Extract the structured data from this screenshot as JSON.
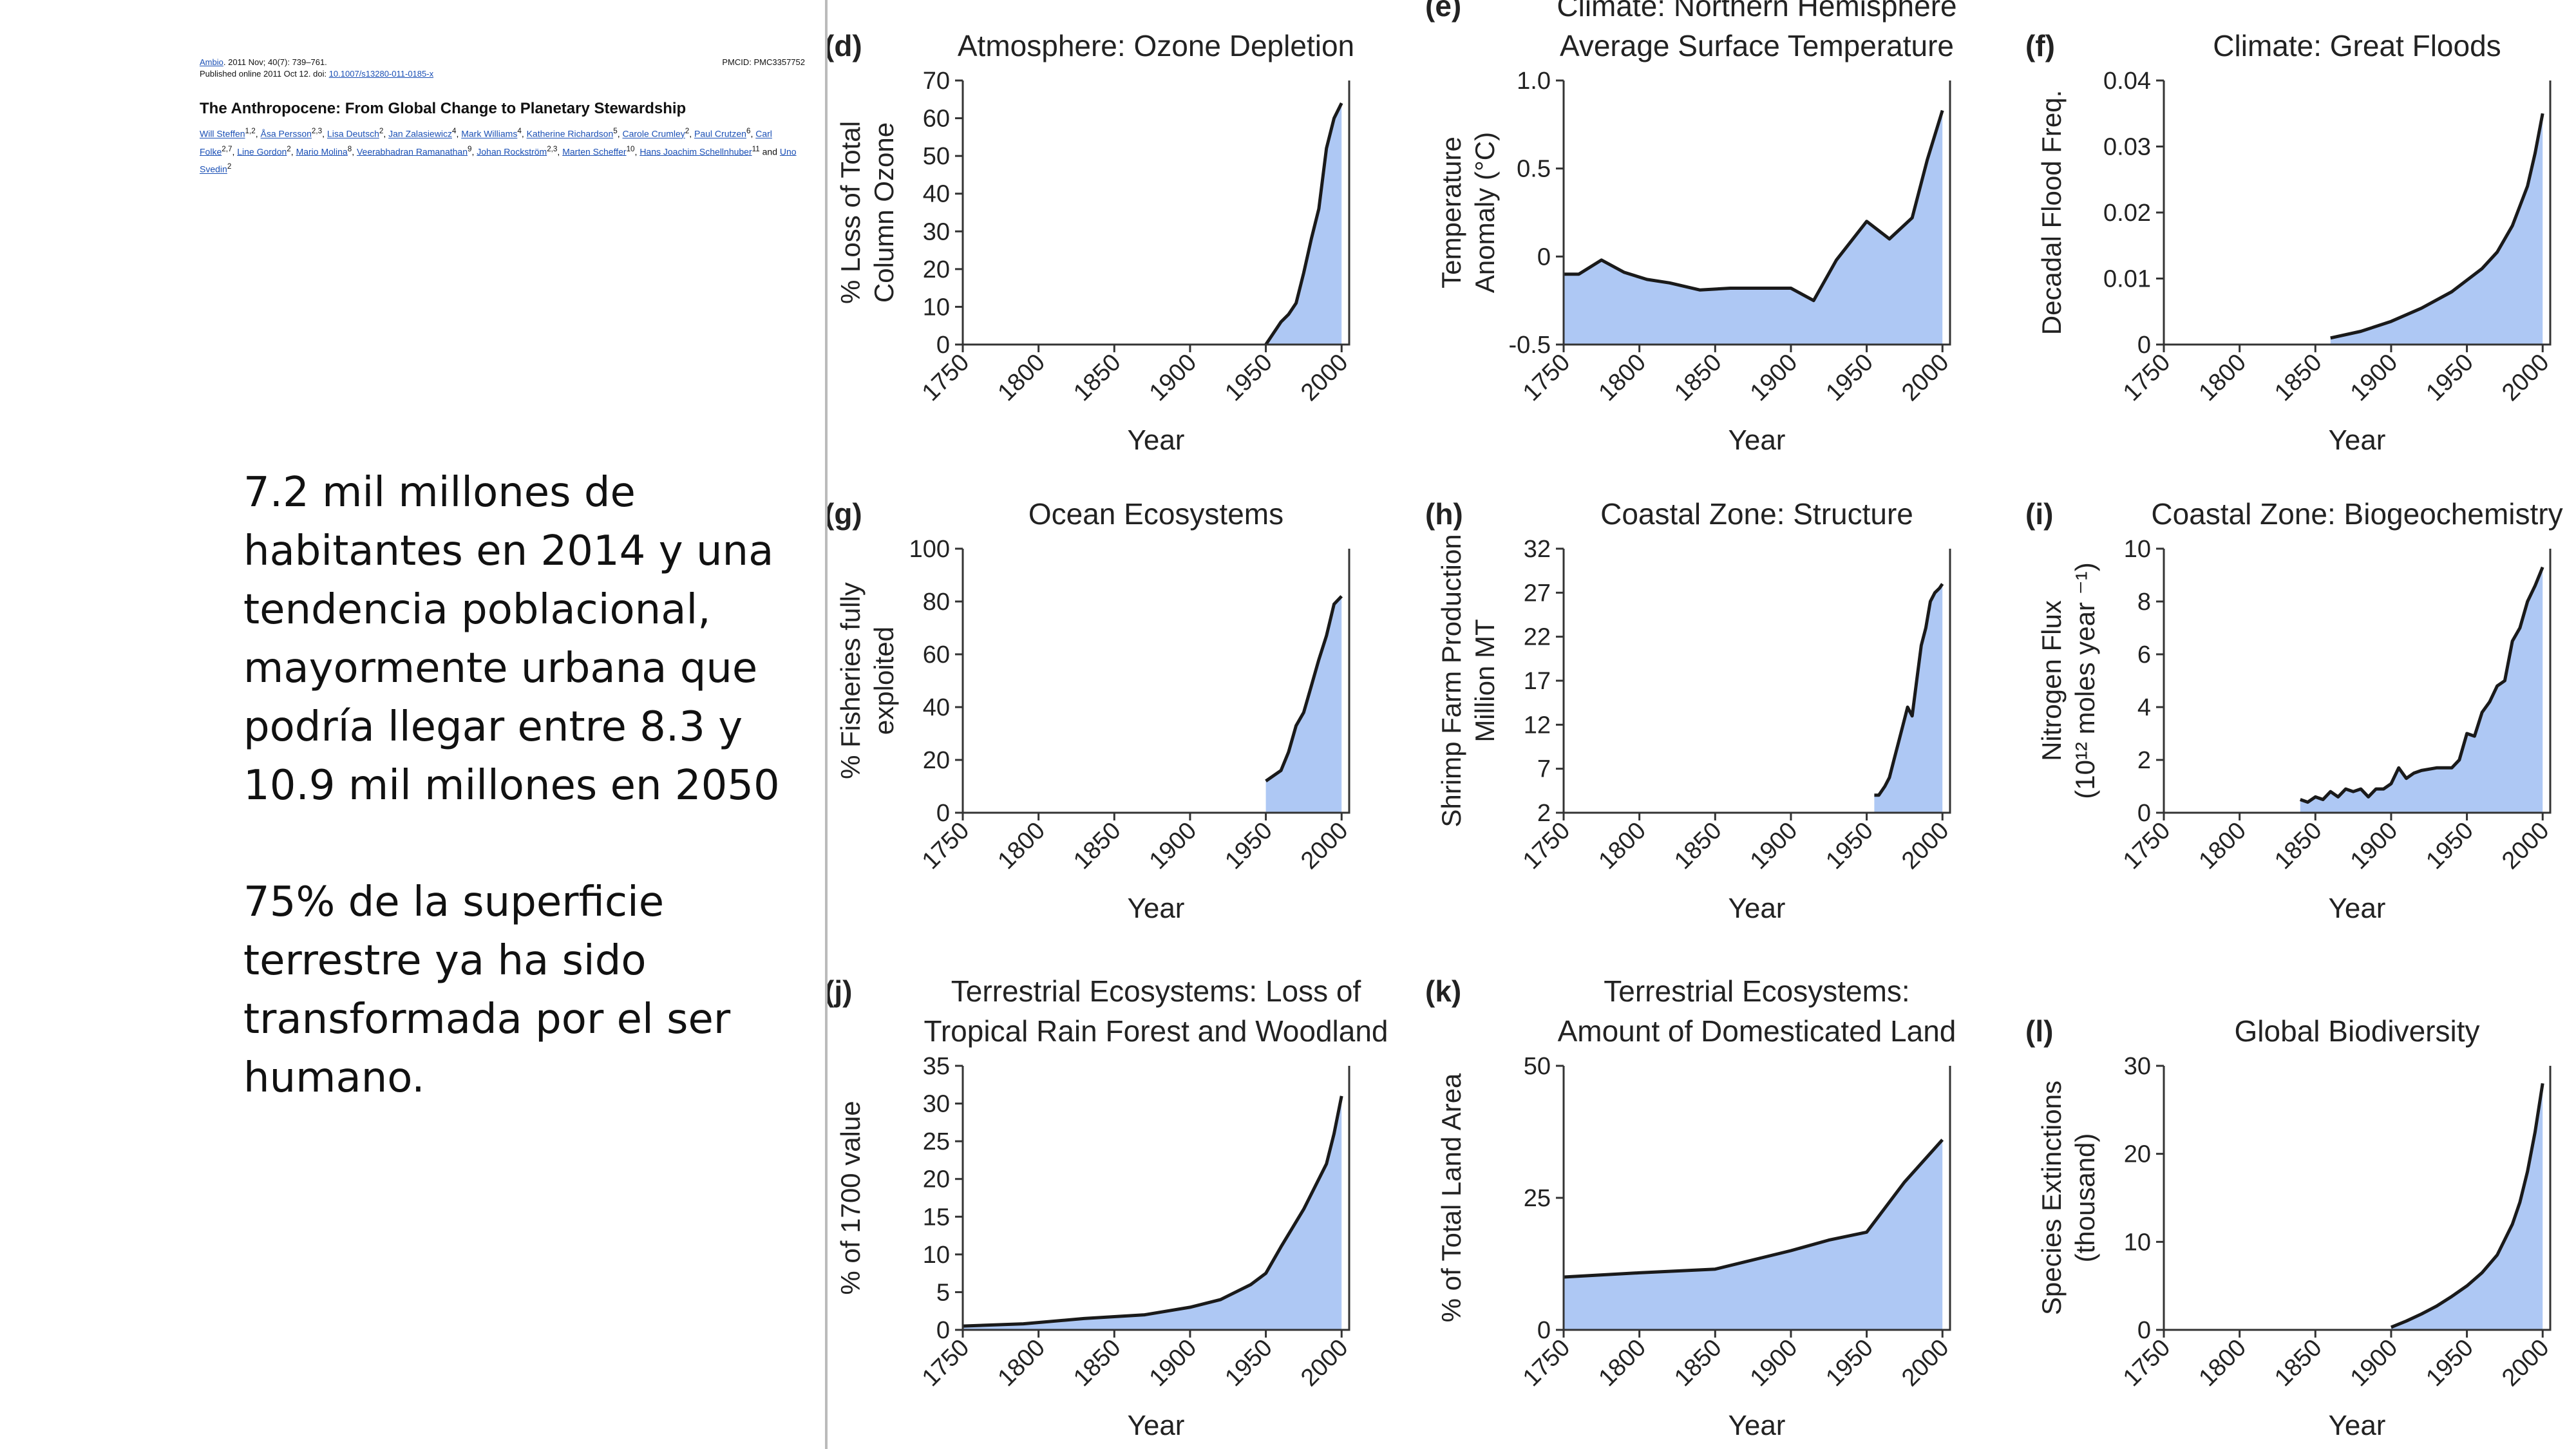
{
  "citation": {
    "journal_link": "Ambio",
    "journal_rest": ". 2011 Nov; 40(7): 739–761.",
    "pmcid": "PMCID: PMC3357752",
    "published": "Published online 2011 Oct 12. doi: ",
    "doi": "10.1007/s13280-011-0185-x",
    "title": "The Anthropocene: From Global Change to Planetary Stewardship",
    "authors": [
      {
        "name": "Will Steffen",
        "sup": "1,2"
      },
      {
        "name": "Åsa Persson",
        "sup": "2,3"
      },
      {
        "name": "Lisa Deutsch",
        "sup": "2"
      },
      {
        "name": "Jan Zalasiewicz",
        "sup": "4"
      },
      {
        "name": "Mark Williams",
        "sup": "4"
      },
      {
        "name": "Katherine Richardson",
        "sup": "5"
      },
      {
        "name": "Carole Crumley",
        "sup": "2"
      },
      {
        "name": "Paul Crutzen",
        "sup": "6"
      },
      {
        "name": "Carl Folke",
        "sup": "2,7"
      },
      {
        "name": "Line Gordon",
        "sup": "2"
      },
      {
        "name": "Mario Molina",
        "sup": "8"
      },
      {
        "name": "Veerabhadran Ramanathan",
        "sup": "9"
      },
      {
        "name": "Johan Rockström",
        "sup": "2,3"
      },
      {
        "name": "Marten Scheffer",
        "sup": "10"
      },
      {
        "name": "Hans Joachim Schellnhuber",
        "sup": "11"
      },
      {
        "name": "Uno Svedin",
        "sup": "2"
      }
    ],
    "and_word": "and"
  },
  "notes": {
    "paragraph1": "7.2 mil millones de habitantes en 2014 y una tendencia poblacional, mayormente urbana que podría llegar entre 8.3 y 10.9 mil millones en 2050",
    "paragraph2": "75% de la superficie terrestre ya ha sido transformada por el ser humano."
  },
  "colors": {
    "fill": "#aec8f4",
    "line": "#1a1a1a",
    "axis": "#333333"
  },
  "chart_data": [
    {
      "type": "area",
      "letter": "(d)",
      "title": [
        "Atmosphere: Ozone Depletion"
      ],
      "ylabel": [
        "% Loss of Total",
        "Column Ozone"
      ],
      "xlabel": "Year",
      "xlim": [
        1750,
        2005
      ],
      "ylim": [
        0,
        70
      ],
      "xticks": [
        "1750",
        "1800",
        "1850",
        "1900",
        "1950",
        "2000"
      ],
      "yticks": [
        "0",
        "10",
        "20",
        "30",
        "40",
        "50",
        "60",
        "70"
      ],
      "x": [
        1950,
        1955,
        1960,
        1965,
        1970,
        1975,
        1980,
        1985,
        1990,
        1995,
        2000
      ],
      "y": [
        0,
        3,
        6,
        8,
        11,
        19,
        28,
        36,
        52,
        60,
        64
      ]
    },
    {
      "type": "area",
      "letter": "(e)",
      "title": [
        "Climate: Northern Hemisphere",
        "Average Surface Temperature"
      ],
      "ylabel": [
        "Temperature",
        "Anomaly (°C)"
      ],
      "xlabel": "Year",
      "xlim": [
        1750,
        2005
      ],
      "ylim": [
        -0.5,
        1.0
      ],
      "xticks": [
        "1750",
        "1800",
        "1850",
        "1900",
        "1950",
        "2000"
      ],
      "yticks": [
        "-0.5",
        "0",
        "0.5",
        "1.0"
      ],
      "x": [
        1750,
        1760,
        1775,
        1790,
        1805,
        1820,
        1840,
        1860,
        1880,
        1900,
        1915,
        1930,
        1950,
        1965,
        1980,
        1990,
        2000
      ],
      "y": [
        -0.1,
        -0.1,
        -0.02,
        -0.09,
        -0.13,
        -0.15,
        -0.19,
        -0.18,
        -0.18,
        -0.18,
        -0.25,
        -0.02,
        0.2,
        0.1,
        0.22,
        0.55,
        0.83
      ]
    },
    {
      "type": "area",
      "letter": "(f)",
      "title": [
        "Climate: Great Floods"
      ],
      "ylabel": [
        "Decadal Flood Freq."
      ],
      "xlabel": "Year",
      "xlim": [
        1750,
        2005
      ],
      "ylim": [
        0,
        0.04
      ],
      "xticks": [
        "1750",
        "1800",
        "1850",
        "1900",
        "1950",
        "2000"
      ],
      "yticks": [
        "0",
        "0.01",
        "0.02",
        "0.03",
        "0.04"
      ],
      "x": [
        1860,
        1880,
        1900,
        1920,
        1940,
        1960,
        1970,
        1980,
        1990,
        1995,
        2000
      ],
      "y": [
        0.001,
        0.002,
        0.0035,
        0.0055,
        0.008,
        0.0115,
        0.014,
        0.018,
        0.024,
        0.029,
        0.035
      ]
    },
    {
      "type": "area",
      "letter": "(g)",
      "title": [
        "Ocean Ecosystems"
      ],
      "ylabel": [
        "% Fisheries fully",
        "exploited"
      ],
      "xlabel": "Year",
      "xlim": [
        1750,
        2005
      ],
      "ylim": [
        0,
        100
      ],
      "xticks": [
        "1750",
        "1800",
        "1850",
        "1900",
        "1950",
        "2000"
      ],
      "yticks": [
        "0",
        "20",
        "40",
        "60",
        "80",
        "100"
      ],
      "x": [
        1950,
        1955,
        1960,
        1965,
        1970,
        1975,
        1980,
        1985,
        1990,
        1995,
        2000
      ],
      "y": [
        12,
        14,
        16,
        23,
        33,
        38,
        48,
        58,
        67,
        79,
        82
      ]
    },
    {
      "type": "area",
      "letter": "(h)",
      "title": [
        "Coastal Zone: Structure"
      ],
      "ylabel": [
        "Shrimp Farm Production",
        "Million MT"
      ],
      "xlabel": "Year",
      "xlim": [
        1750,
        2005
      ],
      "ylim": [
        2,
        32
      ],
      "xticks": [
        "1750",
        "1800",
        "1850",
        "1900",
        "1950",
        "2000"
      ],
      "yticks": [
        "2",
        "7",
        "12",
        "17",
        "22",
        "27",
        "32"
      ],
      "x": [
        1955,
        1958,
        1962,
        1965,
        1968,
        1971,
        1974,
        1977,
        1980,
        1983,
        1986,
        1989,
        1992,
        1995,
        1998,
        2000
      ],
      "y": [
        4,
        4,
        5,
        6,
        8,
        10,
        12,
        14,
        13,
        17,
        21,
        23,
        26,
        27,
        27.5,
        28
      ]
    },
    {
      "type": "area",
      "letter": "(i)",
      "title": [
        "Coastal Zone: Biogeochemistry"
      ],
      "ylabel": [
        "Nitrogen Flux",
        "(10¹² moles year ⁻¹)"
      ],
      "xlabel": "Year",
      "xlim": [
        1750,
        2005
      ],
      "ylim": [
        0,
        10
      ],
      "xticks": [
        "1750",
        "1800",
        "1850",
        "1900",
        "1950",
        "2000"
      ],
      "yticks": [
        "0",
        "2",
        "4",
        "6",
        "8",
        "10"
      ],
      "x": [
        1840,
        1845,
        1850,
        1855,
        1860,
        1865,
        1870,
        1875,
        1880,
        1885,
        1890,
        1895,
        1900,
        1905,
        1910,
        1915,
        1920,
        1930,
        1940,
        1945,
        1950,
        1955,
        1960,
        1965,
        1970,
        1975,
        1980,
        1985,
        1990,
        1995,
        2000
      ],
      "y": [
        0.5,
        0.4,
        0.6,
        0.5,
        0.8,
        0.6,
        0.9,
        0.8,
        0.9,
        0.6,
        0.9,
        0.9,
        1.1,
        1.7,
        1.3,
        1.5,
        1.6,
        1.7,
        1.7,
        2.0,
        3.0,
        2.9,
        3.8,
        4.2,
        4.8,
        5.0,
        6.5,
        7.0,
        8.0,
        8.6,
        9.3
      ]
    },
    {
      "type": "area",
      "letter": "(j)",
      "title": [
        "Terrestrial Ecosystems: Loss of",
        "Tropical Rain Forest and Woodland"
      ],
      "ylabel": [
        "% of 1700 value"
      ],
      "xlabel": "Year",
      "xlim": [
        1750,
        2005
      ],
      "ylim": [
        0,
        35
      ],
      "xticks": [
        "1750",
        "1800",
        "1850",
        "1900",
        "1950",
        "2000"
      ],
      "yticks": [
        "0",
        "5",
        "10",
        "15",
        "20",
        "25",
        "30",
        "35"
      ],
      "x": [
        1750,
        1790,
        1830,
        1870,
        1900,
        1920,
        1940,
        1950,
        1960,
        1975,
        1990,
        1995,
        2000
      ],
      "y": [
        0.5,
        0.8,
        1.5,
        2,
        3,
        4,
        6,
        7.5,
        11,
        16,
        22,
        26,
        31
      ]
    },
    {
      "type": "area",
      "letter": "(k)",
      "title": [
        "Terrestrial Ecosystems:",
        "Amount of Domesticated Land"
      ],
      "ylabel": [
        "% of Total Land Area"
      ],
      "xlabel": "Year",
      "xlim": [
        1750,
        2005
      ],
      "ylim": [
        0,
        50
      ],
      "xticks": [
        "1750",
        "1800",
        "1850",
        "1900",
        "1950",
        "2000"
      ],
      "yticks": [
        "0",
        "25",
        "50"
      ],
      "x": [
        1750,
        1800,
        1850,
        1900,
        1925,
        1950,
        1975,
        2000
      ],
      "y": [
        10,
        10.8,
        11.5,
        15,
        17,
        18.5,
        28,
        36
      ]
    },
    {
      "type": "area",
      "letter": "(l)",
      "title": [
        "Global Biodiversity"
      ],
      "ylabel": [
        "Species Extinctions",
        "(thousand)"
      ],
      "xlabel": "Year",
      "xlim": [
        1750,
        2005
      ],
      "ylim": [
        0,
        30
      ],
      "xticks": [
        "1750",
        "1800",
        "1850",
        "1900",
        "1950",
        "2000"
      ],
      "yticks": [
        "0",
        "10",
        "20",
        "30"
      ],
      "x": [
        1900,
        1910,
        1920,
        1930,
        1940,
        1950,
        1960,
        1970,
        1980,
        1985,
        1990,
        1995,
        2000
      ],
      "y": [
        0.3,
        1,
        1.8,
        2.7,
        3.8,
        5,
        6.5,
        8.5,
        12,
        14.5,
        18,
        22.5,
        28
      ]
    }
  ]
}
